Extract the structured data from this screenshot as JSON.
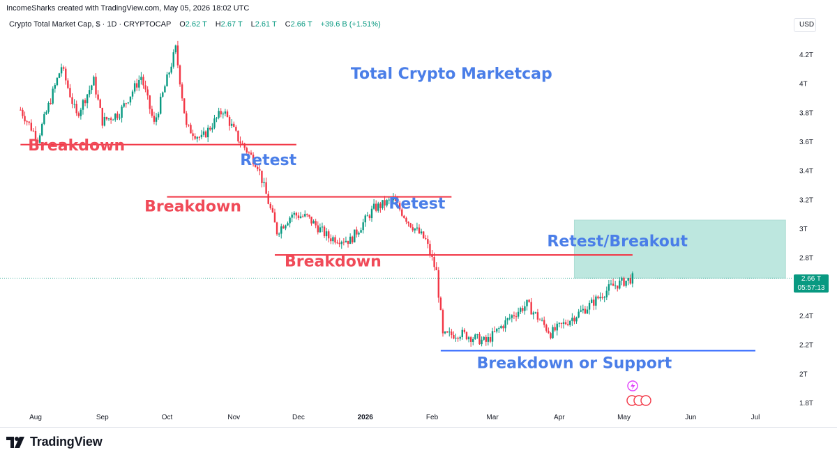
{
  "header": {
    "credit": "IncomeSharks created with TradingView.com, May 05, 2026 18:02 UTC"
  },
  "legend": {
    "symbol": "Crypto Total Market Cap, $ · 1D · CRYPTOCAP",
    "o_key": "O",
    "o_val": "2.62 T",
    "h_key": "H",
    "h_val": "2.67 T",
    "l_key": "L",
    "l_val": "2.61 T",
    "c_key": "C",
    "c_val": "2.66 T",
    "change": "+39.6 B (+1.51%)"
  },
  "axis": {
    "currency": "USD"
  },
  "price_tag": {
    "value": "2.66 T",
    "countdown": "05:57:13"
  },
  "footer": {
    "brand": "TradingView"
  },
  "colors": {
    "up": "#089981",
    "down": "#f23645",
    "annotation_red": "#f23645",
    "annotation_blue": "#2962ff",
    "annotation_text_red": "#f04a58",
    "annotation_text_blue": "#4a7ee8",
    "zone_fill": "#b2e3da",
    "zone_border": "#9fd8cd"
  },
  "chart_data": {
    "type": "candlestick",
    "title": "Total Crypto Marketcap",
    "y_ticks": [
      "4.2T",
      "4T",
      "3.8T",
      "3.6T",
      "3.4T",
      "3.2T",
      "3T",
      "2.8T",
      "2.4T",
      "2.2T",
      "2T",
      "1.8T"
    ],
    "y_tick_values": [
      4.2,
      4.0,
      3.8,
      3.6,
      3.4,
      3.2,
      3.0,
      2.8,
      2.4,
      2.2,
      2.0,
      1.8
    ],
    "ylim": [
      1.8,
      4.2
    ],
    "x_ticks": [
      "Aug",
      "Sep",
      "Oct",
      "Nov",
      "Dec",
      "2026",
      "Feb",
      "Mar",
      "Apr",
      "May",
      "Jun",
      "Jul"
    ],
    "x_tick_dates": [
      "2025-08-01",
      "2025-09-01",
      "2025-10-01",
      "2025-11-01",
      "2025-12-01",
      "2026-01-01",
      "2026-02-01",
      "2026-03-01",
      "2026-04-01",
      "2026-05-01",
      "2026-06-01",
      "2026-07-01"
    ],
    "last_price": 2.66,
    "price_path": [
      [
        "2025-07-25",
        3.82
      ],
      [
        "2025-08-02",
        3.62
      ],
      [
        "2025-08-13",
        4.12
      ],
      [
        "2025-08-20",
        3.78
      ],
      [
        "2025-08-28",
        4.02
      ],
      [
        "2025-09-01",
        3.74
      ],
      [
        "2025-09-09",
        3.8
      ],
      [
        "2025-09-19",
        4.05
      ],
      [
        "2025-09-25",
        3.72
      ],
      [
        "2025-10-05",
        4.24
      ],
      [
        "2025-10-10",
        3.7
      ],
      [
        "2025-10-17",
        3.62
      ],
      [
        "2025-10-27",
        3.82
      ],
      [
        "2025-11-03",
        3.62
      ],
      [
        "2025-11-12",
        3.44
      ],
      [
        "2025-11-21",
        2.98
      ],
      [
        "2025-11-28",
        3.1
      ],
      [
        "2025-12-05",
        3.08
      ],
      [
        "2025-12-15",
        2.94
      ],
      [
        "2025-12-25",
        2.92
      ],
      [
        "2026-01-05",
        3.14
      ],
      [
        "2026-01-14",
        3.2
      ],
      [
        "2026-01-21",
        3.05
      ],
      [
        "2026-01-29",
        2.92
      ],
      [
        "2026-02-03",
        2.7
      ],
      [
        "2026-02-06",
        2.26
      ],
      [
        "2026-02-14",
        2.28
      ],
      [
        "2026-02-26",
        2.22
      ],
      [
        "2026-03-10",
        2.4
      ],
      [
        "2026-03-17",
        2.48
      ],
      [
        "2026-03-28",
        2.28
      ],
      [
        "2026-04-14",
        2.46
      ],
      [
        "2026-04-25",
        2.6
      ],
      [
        "2026-05-05",
        2.66
      ]
    ],
    "horizontal_lines": [
      {
        "label": "Breakdown",
        "value": 3.58,
        "from": "2025-07-25",
        "to": "2025-11-30",
        "color": "red"
      },
      {
        "label": "Breakdown",
        "value": 3.22,
        "from": "2025-10-01",
        "to": "2026-02-10",
        "color": "red"
      },
      {
        "label": "Breakdown",
        "value": 2.82,
        "from": "2025-11-20",
        "to": "2026-05-05",
        "color": "red"
      },
      {
        "label": "Breakdown or Support",
        "value": 2.16,
        "from": "2026-02-05",
        "to": "2026-07-01",
        "color": "blue"
      }
    ],
    "zone": {
      "label": "Retest/Breakout",
      "from": "2026-04-08",
      "to": "2026-07-15",
      "y_low": 2.66,
      "y_high": 3.06
    },
    "annotations": [
      {
        "text": "Breakdown",
        "date": "2025-08-20",
        "value": 3.54,
        "color": "red"
      },
      {
        "text": "Retest",
        "date": "2025-11-17",
        "value": 3.44,
        "color": "blue"
      },
      {
        "text": "Breakdown",
        "date": "2025-10-13",
        "value": 3.12,
        "color": "red"
      },
      {
        "text": "Retest",
        "date": "2026-01-25",
        "value": 3.14,
        "color": "blue"
      },
      {
        "text": "Breakdown",
        "date": "2025-12-17",
        "value": 2.74,
        "color": "red"
      },
      {
        "text": "Retest/Breakout",
        "date": "2026-04-28",
        "value": 2.88,
        "color": "blue"
      },
      {
        "text": "Breakdown or Support",
        "date": "2026-04-08",
        "value": 2.04,
        "color": "blue"
      }
    ]
  }
}
